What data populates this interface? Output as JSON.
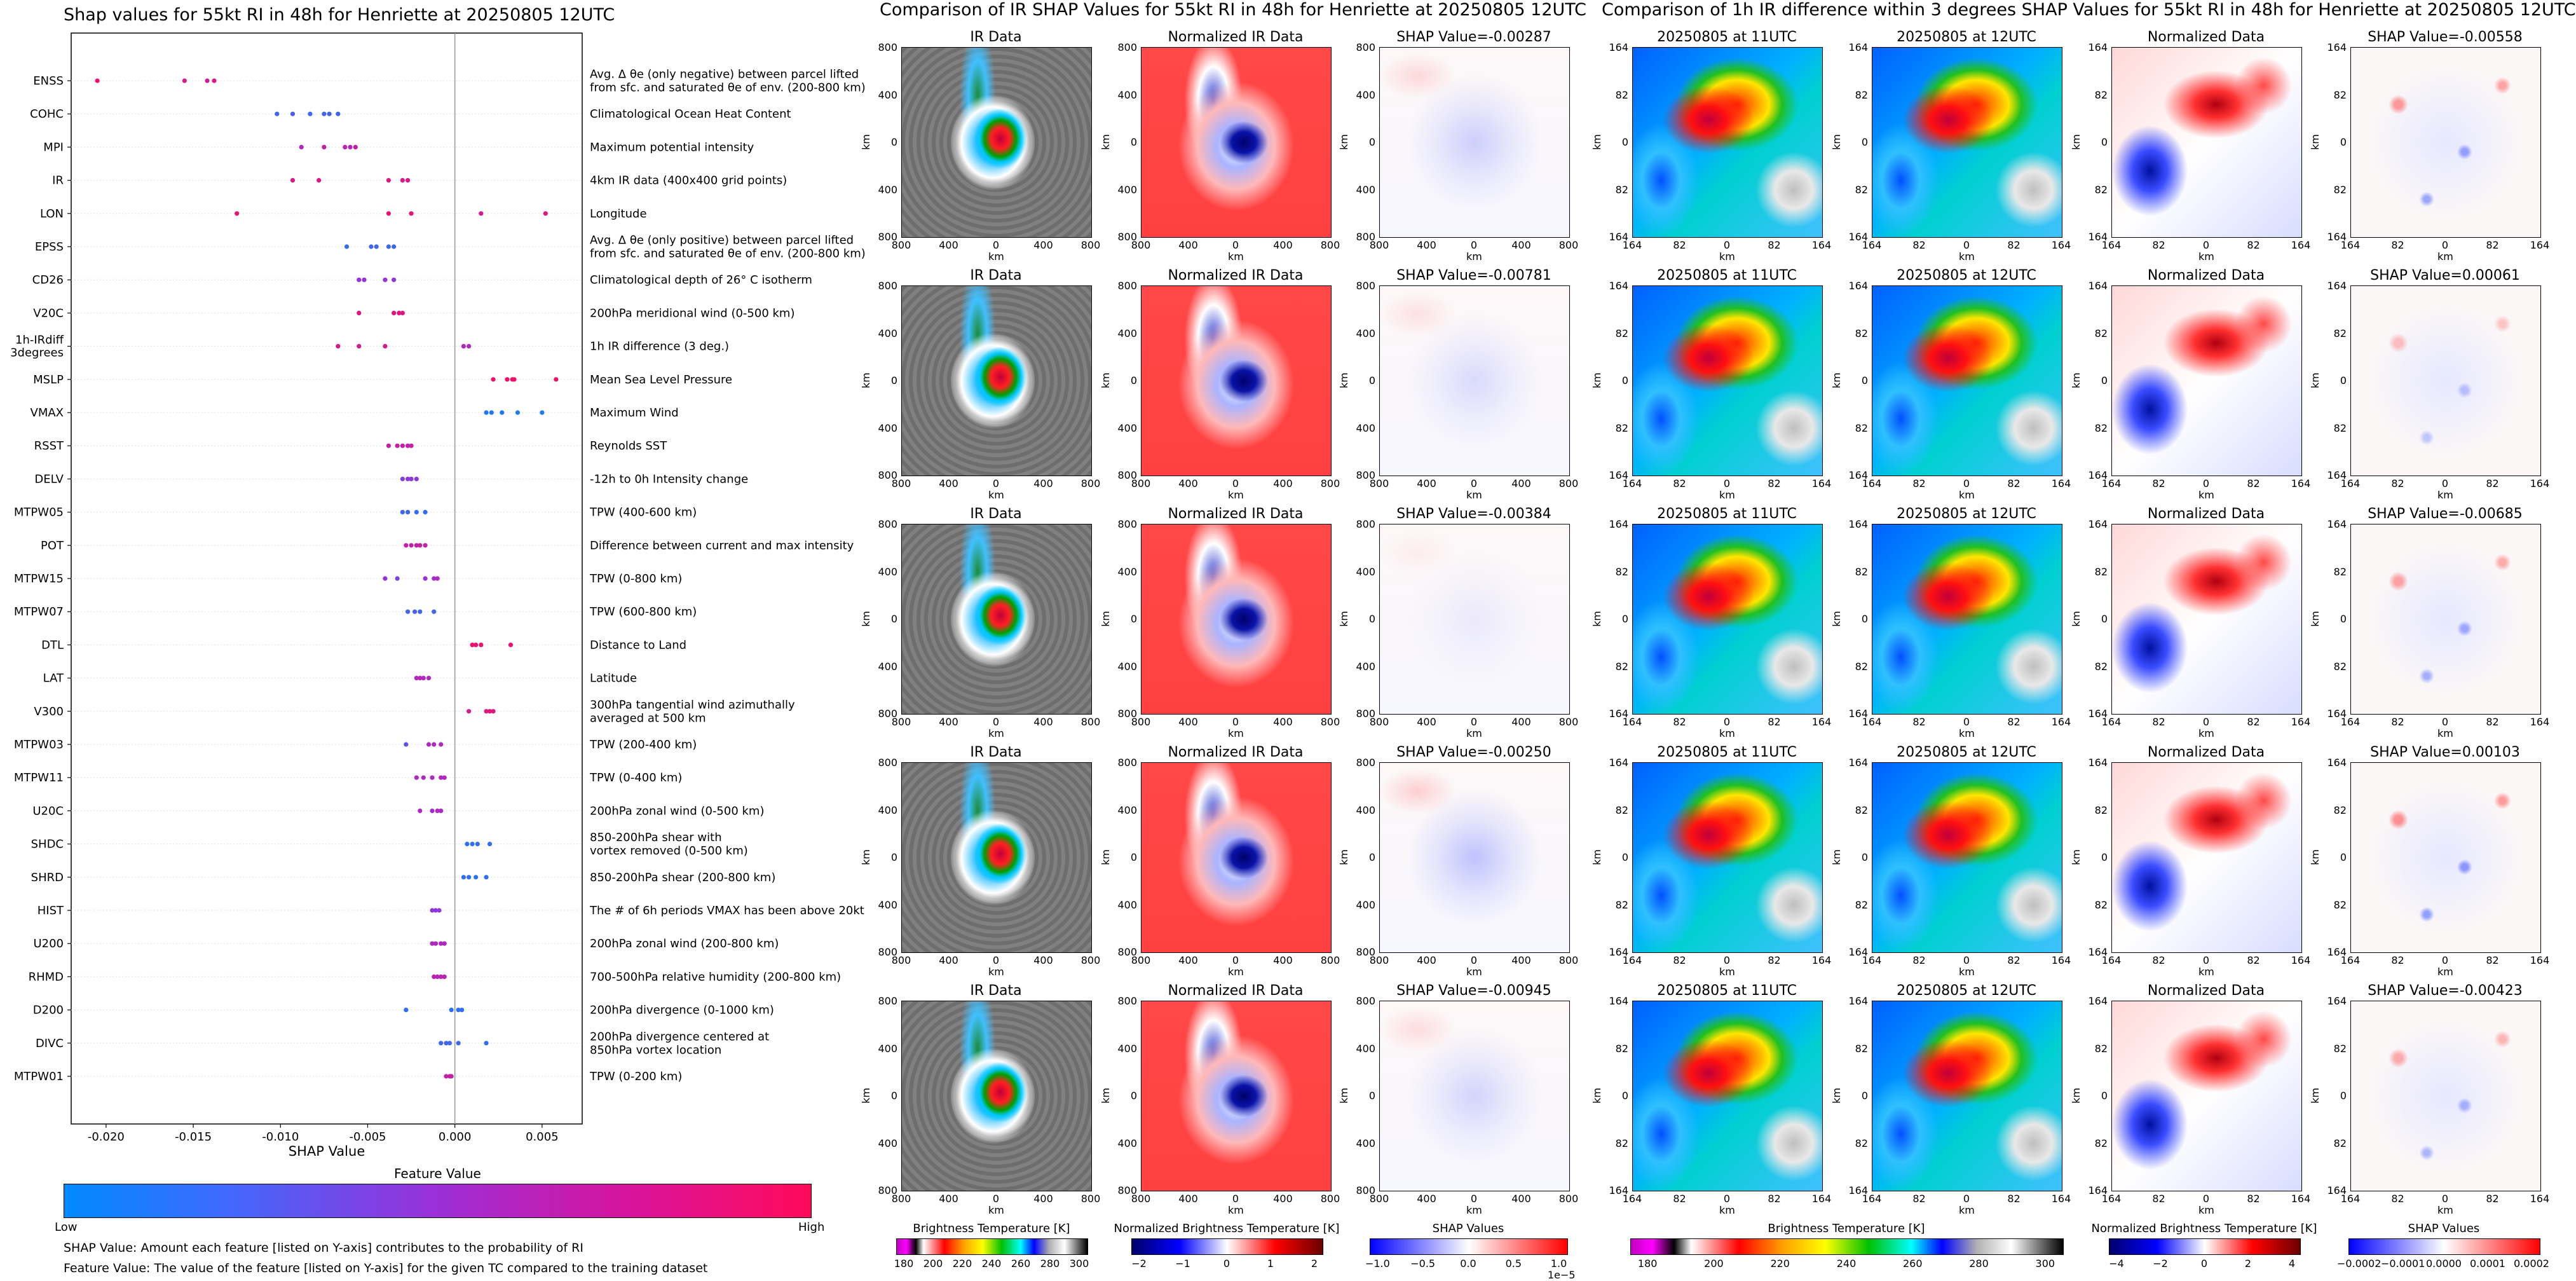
{
  "chart_data": {
    "type": "scatter",
    "title": "Shap values for 55kt RI in 48h for Henriette at 20250805 12UTC",
    "xlabel": "SHAP Value",
    "xlim": [
      -0.022,
      0.0073
    ],
    "xticks": [
      "-0.020",
      "-0.015",
      "-0.010",
      "-0.005",
      "0.000",
      "0.005"
    ],
    "xtick_values": [
      -0.02,
      -0.015,
      -0.01,
      -0.005,
      0.0,
      0.005
    ],
    "features": [
      {
        "name": "ENSS",
        "desc": "Avg. Δ θe (only negative) between parcel lifted\nfrom sfc. and saturated θe of env. (200-800 km)",
        "points": [
          [
            -0.0205,
            0.95
          ],
          [
            -0.0155,
            0.8
          ],
          [
            -0.0142,
            0.75
          ],
          [
            -0.0138,
            0.85
          ]
        ]
      },
      {
        "name": "COHC",
        "desc": "Climatological Ocean Heat Content",
        "points": [
          [
            -0.0102,
            0.2
          ],
          [
            -0.0093,
            0.25
          ],
          [
            -0.0083,
            0.2
          ],
          [
            -0.0075,
            0.2
          ],
          [
            -0.0072,
            0.22
          ],
          [
            -0.0067,
            0.2
          ]
        ]
      },
      {
        "name": "MPI",
        "desc": "Maximum potential intensity",
        "points": [
          [
            -0.0088,
            0.6
          ],
          [
            -0.0075,
            0.7
          ],
          [
            -0.0063,
            0.65
          ],
          [
            -0.006,
            0.6
          ],
          [
            -0.0057,
            0.7
          ]
        ]
      },
      {
        "name": "IR",
        "desc": "4km IR data (400x400 grid points)",
        "points": [
          [
            -0.0093,
            0.85
          ],
          [
            -0.0078,
            0.85
          ],
          [
            -0.0038,
            0.85
          ],
          [
            -0.003,
            0.8
          ],
          [
            -0.0027,
            0.85
          ]
        ]
      },
      {
        "name": "LON",
        "desc": "Longitude",
        "points": [
          [
            -0.0125,
            0.9
          ],
          [
            -0.0038,
            0.9
          ],
          [
            -0.0025,
            0.9
          ],
          [
            0.0015,
            0.8
          ],
          [
            0.0052,
            0.85
          ]
        ]
      },
      {
        "name": "EPSS",
        "desc": "Avg. Δ θe (only positive) between parcel lifted\nfrom sfc. and saturated θe of env. (200-800 km)",
        "points": [
          [
            -0.0062,
            0.15
          ],
          [
            -0.0048,
            0.2
          ],
          [
            -0.0045,
            0.2
          ],
          [
            -0.0038,
            0.2
          ],
          [
            -0.0035,
            0.2
          ]
        ]
      },
      {
        "name": "CD26",
        "desc": "Climatological depth of 26° C isotherm",
        "points": [
          [
            -0.0055,
            0.5
          ],
          [
            -0.0052,
            0.5
          ],
          [
            -0.004,
            0.5
          ],
          [
            -0.0035,
            0.45
          ]
        ]
      },
      {
        "name": "V20C",
        "desc": "200hPa meridional wind (0-500 km)",
        "points": [
          [
            -0.0055,
            0.85
          ],
          [
            -0.0035,
            0.85
          ],
          [
            -0.0032,
            0.85
          ],
          [
            -0.003,
            0.85
          ]
        ]
      },
      {
        "name": "1h-IRdiff\n3degrees",
        "desc": "1h IR difference (3 deg.)",
        "points": [
          [
            -0.0067,
            0.8
          ],
          [
            -0.0055,
            0.8
          ],
          [
            -0.004,
            0.8
          ],
          [
            0.0005,
            0.6
          ],
          [
            0.0008,
            0.6
          ]
        ]
      },
      {
        "name": "MSLP",
        "desc": "Mean Sea Level Pressure",
        "points": [
          [
            0.0022,
            0.95
          ],
          [
            0.003,
            0.95
          ],
          [
            0.0033,
            0.95
          ],
          [
            0.0034,
            0.95
          ],
          [
            0.0058,
            0.95
          ]
        ]
      },
      {
        "name": "VMAX",
        "desc": "Maximum Wind",
        "points": [
          [
            0.0018,
            0.1
          ],
          [
            0.0021,
            0.1
          ],
          [
            0.0027,
            0.1
          ],
          [
            0.0036,
            0.1
          ],
          [
            0.005,
            0.1
          ]
        ]
      },
      {
        "name": "RSST",
        "desc": "Reynolds SST",
        "points": [
          [
            -0.0038,
            0.7
          ],
          [
            -0.0033,
            0.7
          ],
          [
            -0.003,
            0.7
          ],
          [
            -0.0027,
            0.7
          ],
          [
            -0.0025,
            0.7
          ]
        ]
      },
      {
        "name": "DELV",
        "desc": "-12h to 0h Intensity change",
        "points": [
          [
            -0.003,
            0.4
          ],
          [
            -0.0027,
            0.45
          ],
          [
            -0.0025,
            0.45
          ],
          [
            -0.0022,
            0.45
          ]
        ]
      },
      {
        "name": "MTPW05",
        "desc": "TPW (400-600 km)",
        "points": [
          [
            -0.003,
            0.2
          ],
          [
            -0.0027,
            0.2
          ],
          [
            -0.0022,
            0.15
          ],
          [
            -0.0017,
            0.15
          ]
        ]
      },
      {
        "name": "POT",
        "desc": "Difference between current and max intensity",
        "points": [
          [
            -0.0028,
            0.7
          ],
          [
            -0.0025,
            0.7
          ],
          [
            -0.0022,
            0.7
          ],
          [
            -0.002,
            0.7
          ],
          [
            -0.0017,
            0.7
          ]
        ]
      },
      {
        "name": "MTPW15",
        "desc": "TPW (0-800 km)",
        "points": [
          [
            -0.004,
            0.5
          ],
          [
            -0.0033,
            0.4
          ],
          [
            -0.0017,
            0.5
          ],
          [
            -0.0012,
            0.55
          ],
          [
            -0.001,
            0.6
          ]
        ]
      },
      {
        "name": "MTPW07",
        "desc": "TPW (600-800 km)",
        "points": [
          [
            -0.0027,
            0.2
          ],
          [
            -0.0023,
            0.25
          ],
          [
            -0.002,
            0.2
          ],
          [
            -0.0012,
            0.2
          ]
        ]
      },
      {
        "name": "DTL",
        "desc": "Distance to Land",
        "points": [
          [
            0.001,
            0.9
          ],
          [
            0.0012,
            0.9
          ],
          [
            0.0015,
            0.9
          ],
          [
            0.0032,
            0.9
          ]
        ]
      },
      {
        "name": "LAT",
        "desc": "Latitude",
        "points": [
          [
            -0.0022,
            0.6
          ],
          [
            -0.002,
            0.65
          ],
          [
            -0.0018,
            0.6
          ],
          [
            -0.0015,
            0.6
          ]
        ]
      },
      {
        "name": "V300",
        "desc": "300hPa tangential wind azimuthally\naveraged at 500 km",
        "points": [
          [
            0.0008,
            0.8
          ],
          [
            0.0018,
            0.85
          ],
          [
            0.002,
            0.85
          ],
          [
            0.0022,
            0.85
          ]
        ]
      },
      {
        "name": "MTPW03",
        "desc": "TPW (200-400 km)",
        "points": [
          [
            -0.0028,
            0.3
          ],
          [
            -0.0015,
            0.6
          ],
          [
            -0.0012,
            0.6
          ],
          [
            -0.0008,
            0.6
          ]
        ]
      },
      {
        "name": "MTPW11",
        "desc": "TPW (0-400 km)",
        "points": [
          [
            -0.0022,
            0.6
          ],
          [
            -0.0018,
            0.6
          ],
          [
            -0.0013,
            0.6
          ],
          [
            -0.0008,
            0.6
          ],
          [
            -0.0006,
            0.6
          ]
        ]
      },
      {
        "name": "U20C",
        "desc": "200hPa zonal wind (0-500 km)",
        "points": [
          [
            -0.002,
            0.6
          ],
          [
            -0.0013,
            0.55
          ],
          [
            -0.001,
            0.6
          ],
          [
            -0.0008,
            0.55
          ]
        ]
      },
      {
        "name": "SHDC",
        "desc": "850-200hPa shear with\nvortex removed (0-500 km)",
        "points": [
          [
            0.0007,
            0.15
          ],
          [
            0.001,
            0.15
          ],
          [
            0.0013,
            0.15
          ],
          [
            0.002,
            0.15
          ]
        ]
      },
      {
        "name": "SHRD",
        "desc": "850-200hPa shear (200-800 km)",
        "points": [
          [
            0.0005,
            0.15
          ],
          [
            0.0008,
            0.15
          ],
          [
            0.0012,
            0.15
          ],
          [
            0.0018,
            0.15
          ]
        ]
      },
      {
        "name": "HIST",
        "desc": "The # of 6h periods VMAX has been above 20kt",
        "points": [
          [
            -0.0013,
            0.45
          ],
          [
            -0.0011,
            0.45
          ],
          [
            -0.0009,
            0.45
          ]
        ]
      },
      {
        "name": "U200",
        "desc": "200hPa zonal wind (200-800 km)",
        "points": [
          [
            -0.0013,
            0.6
          ],
          [
            -0.0011,
            0.6
          ],
          [
            -0.0008,
            0.6
          ],
          [
            -0.0006,
            0.6
          ]
        ]
      },
      {
        "name": "RHMD",
        "desc": "700-500hPa relative humidity (200-800 km)",
        "points": [
          [
            -0.0012,
            0.65
          ],
          [
            -0.001,
            0.65
          ],
          [
            -0.0008,
            0.65
          ],
          [
            -0.0006,
            0.65
          ]
        ]
      },
      {
        "name": "D200",
        "desc": "200hPa divergence (0-1000 km)",
        "points": [
          [
            -0.0028,
            0.15
          ],
          [
            -0.0002,
            0.15
          ],
          [
            0.0002,
            0.15
          ],
          [
            0.0004,
            0.15
          ]
        ]
      },
      {
        "name": "DIVC",
        "desc": "200hPa divergence centered at\n850hPa vortex location",
        "points": [
          [
            -0.0008,
            0.2
          ],
          [
            -0.0005,
            0.2
          ],
          [
            -0.0003,
            0.2
          ],
          [
            0.0002,
            0.2
          ],
          [
            0.0018,
            0.15
          ]
        ]
      },
      {
        "name": "MTPW01",
        "desc": "TPW (0-200 km)",
        "points": [
          [
            -0.0005,
            0.7
          ],
          [
            -0.0003,
            0.7
          ],
          [
            -0.0002,
            0.7
          ]
        ]
      }
    ],
    "colorbar": {
      "title": "Feature Value",
      "low": "Low",
      "high": "High"
    },
    "footnotes": [
      "SHAP Value: Amount each feature [listed on Y-axis] contributes to the probability of RI",
      "Feature Value: The value of the feature [listed on Y-axis] for the given TC compared to the training dataset"
    ]
  },
  "middle": {
    "title": "Comparison of IR SHAP Values for 55kt RI in 48h for Henriette at 20250805 12UTC",
    "col_titles": [
      "IR Data",
      "Normalized IR Data"
    ],
    "shap_titles": [
      "SHAP Value=-0.00287",
      "SHAP Value=-0.00781",
      "SHAP Value=-0.00384",
      "SHAP Value=-0.00250",
      "SHAP Value=-0.00945"
    ],
    "x_ticks": [
      "800",
      "400",
      "0",
      "400",
      "800"
    ],
    "y_ticks": [
      "800",
      "400",
      "0",
      "400",
      "800"
    ],
    "axis_unit": "km",
    "colorbars": [
      {
        "label": "Brightness Temperature [K]",
        "ticks": [
          "180",
          "200",
          "220",
          "240",
          "260",
          "280",
          "300"
        ]
      },
      {
        "label": "Normalized Brightness Temperature [K]",
        "ticks": [
          "−2",
          "−1",
          "0",
          "1",
          "2"
        ]
      },
      {
        "label": "SHAP Values",
        "ticks": [
          "−1.0",
          "−0.5",
          "0.0",
          "0.5",
          "1.0"
        ],
        "exponent": "1e−5"
      }
    ]
  },
  "right": {
    "title": "Comparison of 1h IR difference within 3 degrees SHAP Values for 55kt RI in 48h for Henriette at 20250805 12UTC",
    "col_titles": [
      "20250805 at 11UTC",
      "20250805 at 12UTC",
      "Normalized Data"
    ],
    "shap_titles": [
      "SHAP Value=-0.00558",
      "SHAP Value=0.00061",
      "SHAP Value=-0.00685",
      "SHAP Value=0.00103",
      "SHAP Value=-0.00423"
    ],
    "x_ticks": [
      "164",
      "82",
      "0",
      "82",
      "164"
    ],
    "y_ticks": [
      "164",
      "82",
      "0",
      "82",
      "164"
    ],
    "axis_unit": "km",
    "colorbars": [
      {
        "label": "Brightness Temperature [K]",
        "ticks": [
          "180",
          "200",
          "220",
          "240",
          "260",
          "280",
          "300"
        ]
      },
      {
        "label": "Normalized Brightness Temperature [K]",
        "ticks": [
          "−4",
          "−2",
          "0",
          "2",
          "4"
        ]
      },
      {
        "label": "SHAP Values",
        "ticks": [
          "−0.0002",
          "−0.0001",
          "0.0000",
          "0.0001",
          "0.0002"
        ]
      }
    ]
  },
  "colors": {
    "low": "#1e8fff",
    "mid": "#9b2bd6",
    "high": "#ff0066"
  }
}
